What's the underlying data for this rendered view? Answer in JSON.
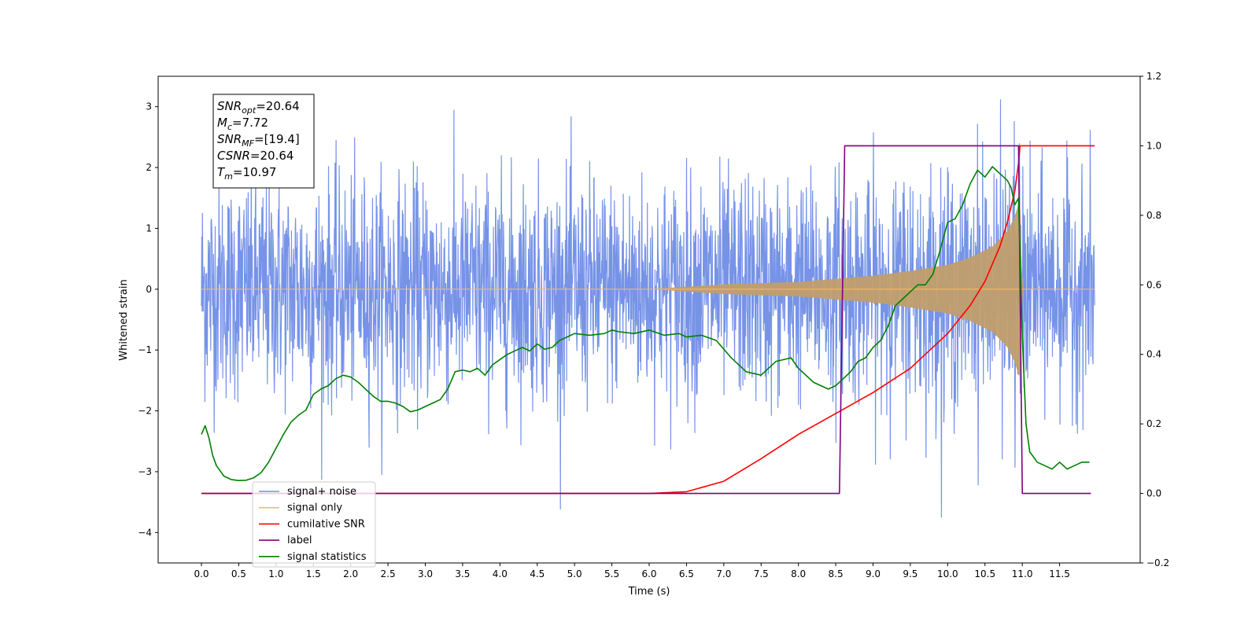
{
  "chart_data": {
    "type": "line",
    "xlabel": "Time (s)",
    "ylabel_left": "Whitened strain",
    "ylabel_right": "",
    "xlim": [
      -0.58,
      12.58
    ],
    "ylim_left": [
      -4.5,
      3.5
    ],
    "ylim_right": [
      -0.2,
      1.2
    ],
    "x_ticks": [
      "0.0",
      "0.5",
      "1.0",
      "1.5",
      "2.0",
      "2.5",
      "3.0",
      "3.5",
      "4.0",
      "4.5",
      "5.0",
      "5.5",
      "6.0",
      "6.5",
      "7.0",
      "7.5",
      "8.0",
      "8.5",
      "9.0",
      "9.5",
      "10.0",
      "10.5",
      "11.0",
      "11.5"
    ],
    "y_ticks_left": [
      "3",
      "2",
      "1",
      "0",
      "−1",
      "−2",
      "−3",
      "−4"
    ],
    "y_ticks_right": [
      "1.2",
      "1.0",
      "0.8",
      "0.6",
      "0.4",
      "0.2",
      "0.0",
      "−0.2"
    ],
    "grid": false,
    "legend_position": "lower-left",
    "annotation_box": {
      "lines": [
        {
          "base": "SNR",
          "sub": "opt",
          "rest": "=20.64"
        },
        {
          "base": "M",
          "sub": "c",
          "rest": "=7.72"
        },
        {
          "base": "SNR",
          "sub": "MF",
          "rest": "=[19.4]"
        },
        {
          "base": "CSNR",
          "sub": "",
          "rest": "=20.64"
        },
        {
          "base": "T",
          "sub": "m",
          "rest": "=10.97"
        }
      ]
    },
    "legend": [
      {
        "label": "signal+ noise",
        "color": "#6f8de6"
      },
      {
        "label": "signal only",
        "color": "#f7b861"
      },
      {
        "label": "cumilative SNR",
        "color": "#ff0000"
      },
      {
        "label": "label",
        "color": "#800080"
      },
      {
        "label": "signal statistics",
        "color": "#008000"
      }
    ],
    "series": [
      {
        "name": "signal+ noise",
        "axis": "left",
        "color": "#6f8de6",
        "description_range": {
          "x_start": 0.0,
          "x_end": 11.97,
          "noise_sigma": 1.0,
          "min": -4.1,
          "max": 3.12
        }
      },
      {
        "name": "signal only",
        "axis": "left",
        "color": "#f7b861",
        "envelope": {
          "x": [
            0.0,
            6.0,
            7.0,
            8.0,
            8.5,
            9.0,
            9.5,
            10.0,
            10.3,
            10.6,
            10.8,
            10.9,
            10.97,
            11.0,
            11.97
          ],
          "amplitude": [
            0.0,
            0.0,
            0.08,
            0.12,
            0.17,
            0.22,
            0.3,
            0.4,
            0.52,
            0.7,
            0.95,
            1.2,
            1.5,
            0.0,
            0.0
          ]
        }
      },
      {
        "name": "cumilative SNR",
        "axis": "right",
        "color": "#ff0000",
        "x": [
          0.0,
          6.0,
          6.5,
          7.0,
          7.5,
          8.0,
          8.5,
          9.0,
          9.5,
          10.0,
          10.3,
          10.5,
          10.7,
          10.8,
          10.9,
          10.95,
          10.97,
          11.0,
          11.97
        ],
        "y": [
          0.0,
          0.0,
          0.005,
          0.035,
          0.1,
          0.17,
          0.23,
          0.29,
          0.36,
          0.46,
          0.54,
          0.61,
          0.71,
          0.78,
          0.87,
          0.95,
          1.0,
          1.0,
          1.0
        ]
      },
      {
        "name": "label",
        "axis": "right",
        "color": "#800080",
        "x": [
          0.0,
          8.55,
          8.62,
          10.95,
          11.0,
          11.92
        ],
        "y": [
          0.0,
          0.0,
          1.0,
          1.0,
          0.0,
          0.0
        ]
      },
      {
        "name": "signal statistics",
        "axis": "right",
        "color": "#008000",
        "x": [
          0.0,
          0.05,
          0.1,
          0.15,
          0.2,
          0.3,
          0.4,
          0.5,
          0.6,
          0.7,
          0.8,
          0.9,
          1.0,
          1.1,
          1.2,
          1.3,
          1.4,
          1.5,
          1.6,
          1.7,
          1.8,
          1.9,
          2.0,
          2.1,
          2.2,
          2.3,
          2.4,
          2.5,
          2.6,
          2.7,
          2.8,
          2.9,
          3.0,
          3.1,
          3.2,
          3.3,
          3.4,
          3.5,
          3.6,
          3.7,
          3.8,
          3.9,
          4.0,
          4.1,
          4.2,
          4.3,
          4.4,
          4.5,
          4.6,
          4.7,
          4.8,
          4.9,
          5.0,
          5.2,
          5.4,
          5.5,
          5.6,
          5.8,
          6.0,
          6.2,
          6.4,
          6.5,
          6.7,
          6.9,
          7.1,
          7.3,
          7.5,
          7.7,
          7.9,
          8.0,
          8.2,
          8.4,
          8.5,
          8.6,
          8.7,
          8.8,
          8.9,
          9.0,
          9.1,
          9.2,
          9.3,
          9.4,
          9.5,
          9.6,
          9.7,
          9.8,
          9.9,
          10.0,
          10.1,
          10.2,
          10.3,
          10.4,
          10.5,
          10.6,
          10.7,
          10.8,
          10.85,
          10.9,
          10.95,
          11.0,
          11.05,
          11.1,
          11.2,
          11.3,
          11.4,
          11.5,
          11.6,
          11.7,
          11.8,
          11.9
        ],
        "y": [
          0.17,
          0.195,
          0.16,
          0.11,
          0.08,
          0.05,
          0.04,
          0.037,
          0.038,
          0.045,
          0.06,
          0.09,
          0.13,
          0.17,
          0.205,
          0.225,
          0.24,
          0.285,
          0.3,
          0.31,
          0.33,
          0.34,
          0.335,
          0.32,
          0.3,
          0.28,
          0.265,
          0.265,
          0.26,
          0.25,
          0.235,
          0.24,
          0.25,
          0.26,
          0.27,
          0.3,
          0.35,
          0.355,
          0.35,
          0.36,
          0.34,
          0.37,
          0.385,
          0.4,
          0.41,
          0.42,
          0.41,
          0.43,
          0.415,
          0.42,
          0.44,
          0.45,
          0.46,
          0.455,
          0.46,
          0.47,
          0.465,
          0.46,
          0.47,
          0.455,
          0.46,
          0.45,
          0.455,
          0.44,
          0.39,
          0.35,
          0.34,
          0.38,
          0.39,
          0.36,
          0.32,
          0.3,
          0.31,
          0.33,
          0.35,
          0.38,
          0.39,
          0.42,
          0.44,
          0.48,
          0.54,
          0.56,
          0.58,
          0.6,
          0.6,
          0.63,
          0.7,
          0.78,
          0.79,
          0.83,
          0.89,
          0.93,
          0.91,
          0.94,
          0.92,
          0.9,
          0.88,
          0.83,
          0.85,
          0.45,
          0.2,
          0.12,
          0.09,
          0.08,
          0.07,
          0.09,
          0.07,
          0.08,
          0.09,
          0.09
        ]
      }
    ]
  }
}
